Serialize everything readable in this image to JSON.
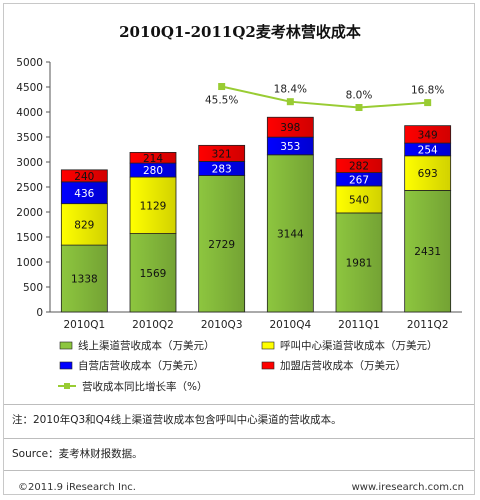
{
  "chart_data": {
    "type": "bar",
    "title": "2010Q1-2011Q2麦考林营收成本",
    "categories": [
      "2010Q1",
      "2010Q2",
      "2010Q3",
      "2010Q4",
      "2011Q1",
      "2011Q2"
    ],
    "ylim": [
      0,
      5000
    ],
    "yticks": [
      0,
      500,
      1000,
      1500,
      2000,
      2500,
      3000,
      3500,
      4000,
      4500,
      5000
    ],
    "grid": false,
    "legend_placement": "bottom",
    "series": [
      {
        "name": "线上渠道营收成本（万美元）",
        "color": "#8dc63f",
        "values": [
          1338,
          1569,
          2729,
          3144,
          1981,
          2431
        ]
      },
      {
        "name": "呼叫中心渠道营收成本（万美元）",
        "color": "#ffff00",
        "values": [
          829,
          1129,
          null,
          null,
          540,
          693
        ]
      },
      {
        "name": "自营店营收成本（万美元）",
        "color": "#0000ff",
        "values": [
          436,
          280,
          283,
          353,
          267,
          254
        ]
      },
      {
        "name": "加盟店营收成本（万美元）",
        "color": "#ff0000",
        "values": [
          240,
          214,
          321,
          398,
          282,
          349
        ]
      }
    ],
    "line": {
      "name": "营收成本同比增长率（%）",
      "color": "#99cc33",
      "categories": [
        "2010Q3",
        "2010Q4",
        "2011Q1",
        "2011Q2"
      ],
      "labels": [
        "45.5%",
        "18.4%",
        "8.0%",
        "16.8%"
      ]
    }
  },
  "note": "注：2010年Q3和Q4线上渠道营收成本包含呼叫中心渠道的营收成本。",
  "source": "Source：麦考林财报数据。",
  "footer": {
    "copyright": "©2011.9 iResearch Inc.",
    "website": "www.iresearch.com.cn"
  }
}
